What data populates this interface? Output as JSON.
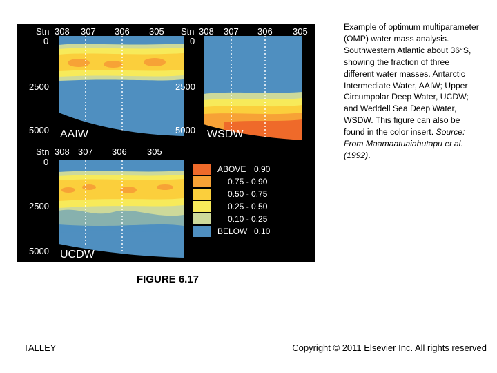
{
  "figure": {
    "station_label": "Stn",
    "stations": [
      "308",
      "307",
      "306",
      "305"
    ],
    "depth_ticks": [
      "0",
      "2500",
      "5000"
    ],
    "panels": [
      {
        "id": "aaiw",
        "label": "AAIW"
      },
      {
        "id": "wsdw",
        "label": "WSDW"
      },
      {
        "id": "ucdw",
        "label": "UCDW"
      }
    ],
    "legend": [
      {
        "label": "ABOVE",
        "value": "0.90",
        "color": "#ef6a2a"
      },
      {
        "label": "",
        "value": "0.75 - 0.90",
        "color": "#f7a236"
      },
      {
        "label": "",
        "value": "0.50 - 0.75",
        "color": "#fbcf3c"
      },
      {
        "label": "",
        "value": "0.25 - 0.50",
        "color": "#f7ea5a"
      },
      {
        "label": "",
        "value": "0.10 - 0.25",
        "color": "#cdd99a"
      },
      {
        "label": "BELOW",
        "value": "0.10",
        "color": "#4f8fc0"
      }
    ]
  },
  "caption": {
    "main": "Example of optimum multiparameter (OMP) water mass analysis. Southwestern Atlantic about 36°S, showing the fraction of three different water masses. Antarctic Intermediate Water, AAIW; Upper Circumpolar Deep Water, UCDW; and Weddell Sea Deep Water, WSDW. This figure can also be found in the color insert. ",
    "source": "Source: From Maamaatuaiahutapu et al. (1992)",
    "end": "."
  },
  "figure_label": "FIGURE 6.17",
  "footer": {
    "left": "TALLEY",
    "right": "Copyright © 2011 Elsevier Inc. All rights reserved"
  }
}
